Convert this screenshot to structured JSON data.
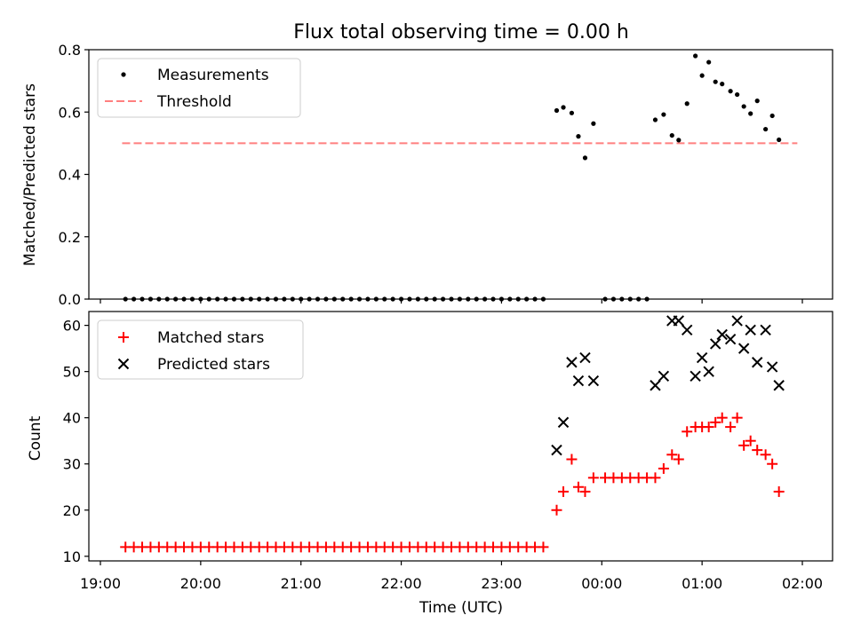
{
  "chart_data": [
    {
      "type": "scatter",
      "title": "Flux total observing time = 0.00 h",
      "ylabel": "Matched/Predicted stars",
      "xlim": [
        "19:00",
        "02:00"
      ],
      "ylim": [
        0,
        0.8
      ],
      "yticks": [
        "0.0",
        "0.2",
        "0.4",
        "0.6",
        "0.8"
      ],
      "legend": {
        "position": "upper-left",
        "entries": [
          "Measurements",
          "Threshold"
        ]
      },
      "threshold": {
        "name": "Threshold",
        "value": 0.5,
        "x_start": "19:13",
        "x_end": "01:57",
        "color": "#ff7f7f",
        "style": "dashed"
      },
      "series": [
        {
          "name": "Measurements",
          "color": "#000000",
          "marker": "dot",
          "points": [
            [
              "19:15",
              0
            ],
            [
              "19:20",
              0
            ],
            [
              "19:25",
              0
            ],
            [
              "19:30",
              0
            ],
            [
              "19:35",
              0
            ],
            [
              "19:40",
              0
            ],
            [
              "19:45",
              0
            ],
            [
              "19:50",
              0
            ],
            [
              "19:55",
              0
            ],
            [
              "20:00",
              0
            ],
            [
              "20:05",
              0
            ],
            [
              "20:10",
              0
            ],
            [
              "20:15",
              0
            ],
            [
              "20:20",
              0
            ],
            [
              "20:25",
              0
            ],
            [
              "20:30",
              0
            ],
            [
              "20:35",
              0
            ],
            [
              "20:40",
              0
            ],
            [
              "20:45",
              0
            ],
            [
              "20:50",
              0
            ],
            [
              "20:55",
              0
            ],
            [
              "21:00",
              0
            ],
            [
              "21:05",
              0
            ],
            [
              "21:10",
              0
            ],
            [
              "21:15",
              0
            ],
            [
              "21:20",
              0
            ],
            [
              "21:25",
              0
            ],
            [
              "21:30",
              0
            ],
            [
              "21:35",
              0
            ],
            [
              "21:40",
              0
            ],
            [
              "21:45",
              0
            ],
            [
              "21:50",
              0
            ],
            [
              "21:55",
              0
            ],
            [
              "22:00",
              0
            ],
            [
              "22:05",
              0
            ],
            [
              "22:10",
              0
            ],
            [
              "22:15",
              0
            ],
            [
              "22:20",
              0
            ],
            [
              "22:25",
              0
            ],
            [
              "22:30",
              0
            ],
            [
              "22:35",
              0
            ],
            [
              "22:40",
              0
            ],
            [
              "22:45",
              0
            ],
            [
              "22:50",
              0
            ],
            [
              "22:55",
              0
            ],
            [
              "23:00",
              0
            ],
            [
              "23:05",
              0
            ],
            [
              "23:10",
              0
            ],
            [
              "23:15",
              0
            ],
            [
              "23:20",
              0
            ],
            [
              "23:25",
              0
            ],
            [
              "23:33",
              0.605
            ],
            [
              "23:37",
              0.615
            ],
            [
              "23:42",
              0.597
            ],
            [
              "23:46",
              0.522
            ],
            [
              "23:50",
              0.453
            ],
            [
              "23:55",
              0.563
            ],
            [
              "00:02",
              0
            ],
            [
              "00:07",
              0
            ],
            [
              "00:12",
              0
            ],
            [
              "00:17",
              0
            ],
            [
              "00:22",
              0
            ],
            [
              "00:27",
              0
            ],
            [
              "00:32",
              0.575
            ],
            [
              "00:37",
              0.592
            ],
            [
              "00:42",
              0.525
            ],
            [
              "00:46",
              0.51
            ],
            [
              "00:51",
              0.627
            ],
            [
              "00:56",
              0.78
            ],
            [
              "01:00",
              0.717
            ],
            [
              "01:04",
              0.76
            ],
            [
              "01:08",
              0.697
            ],
            [
              "01:12",
              0.69
            ],
            [
              "01:17",
              0.667
            ],
            [
              "01:21",
              0.656
            ],
            [
              "01:25",
              0.618
            ],
            [
              "01:29",
              0.595
            ],
            [
              "01:33",
              0.636
            ],
            [
              "01:38",
              0.545
            ],
            [
              "01:42",
              0.588
            ],
            [
              "01:46",
              0.511
            ]
          ]
        }
      ]
    },
    {
      "type": "scatter",
      "xlabel": "Time (UTC)",
      "ylabel": "Count",
      "xlim": [
        "19:00",
        "02:00"
      ],
      "ylim": [
        9,
        63
      ],
      "xticks": [
        "19:00",
        "20:00",
        "21:00",
        "22:00",
        "23:00",
        "00:00",
        "01:00",
        "02:00"
      ],
      "yticks": [
        "10",
        "20",
        "30",
        "40",
        "50",
        "60"
      ],
      "legend": {
        "position": "upper-left",
        "entries": [
          "Matched stars",
          "Predicted stars"
        ]
      },
      "series": [
        {
          "name": "Matched stars",
          "color": "#ff0000",
          "marker": "plus",
          "points": [
            [
              "19:15",
              12
            ],
            [
              "19:20",
              12
            ],
            [
              "19:25",
              12
            ],
            [
              "19:30",
              12
            ],
            [
              "19:35",
              12
            ],
            [
              "19:40",
              12
            ],
            [
              "19:45",
              12
            ],
            [
              "19:50",
              12
            ],
            [
              "19:55",
              12
            ],
            [
              "20:00",
              12
            ],
            [
              "20:05",
              12
            ],
            [
              "20:10",
              12
            ],
            [
              "20:15",
              12
            ],
            [
              "20:20",
              12
            ],
            [
              "20:25",
              12
            ],
            [
              "20:30",
              12
            ],
            [
              "20:35",
              12
            ],
            [
              "20:40",
              12
            ],
            [
              "20:45",
              12
            ],
            [
              "20:50",
              12
            ],
            [
              "20:55",
              12
            ],
            [
              "21:00",
              12
            ],
            [
              "21:05",
              12
            ],
            [
              "21:10",
              12
            ],
            [
              "21:15",
              12
            ],
            [
              "21:20",
              12
            ],
            [
              "21:25",
              12
            ],
            [
              "21:30",
              12
            ],
            [
              "21:35",
              12
            ],
            [
              "21:40",
              12
            ],
            [
              "21:45",
              12
            ],
            [
              "21:50",
              12
            ],
            [
              "21:55",
              12
            ],
            [
              "22:00",
              12
            ],
            [
              "22:05",
              12
            ],
            [
              "22:10",
              12
            ],
            [
              "22:15",
              12
            ],
            [
              "22:20",
              12
            ],
            [
              "22:25",
              12
            ],
            [
              "22:30",
              12
            ],
            [
              "22:35",
              12
            ],
            [
              "22:40",
              12
            ],
            [
              "22:45",
              12
            ],
            [
              "22:50",
              12
            ],
            [
              "22:55",
              12
            ],
            [
              "23:00",
              12
            ],
            [
              "23:05",
              12
            ],
            [
              "23:10",
              12
            ],
            [
              "23:15",
              12
            ],
            [
              "23:20",
              12
            ],
            [
              "23:25",
              12
            ],
            [
              "23:33",
              20
            ],
            [
              "23:37",
              24
            ],
            [
              "23:42",
              31
            ],
            [
              "23:46",
              25
            ],
            [
              "23:50",
              24
            ],
            [
              "23:55",
              27
            ],
            [
              "00:02",
              27
            ],
            [
              "00:07",
              27
            ],
            [
              "00:12",
              27
            ],
            [
              "00:17",
              27
            ],
            [
              "00:22",
              27
            ],
            [
              "00:27",
              27
            ],
            [
              "00:32",
              27
            ],
            [
              "00:37",
              29
            ],
            [
              "00:42",
              32
            ],
            [
              "00:46",
              31
            ],
            [
              "00:51",
              37
            ],
            [
              "00:56",
              38
            ],
            [
              "01:00",
              38
            ],
            [
              "01:04",
              38
            ],
            [
              "01:08",
              39
            ],
            [
              "01:12",
              40
            ],
            [
              "01:17",
              38
            ],
            [
              "01:21",
              40
            ],
            [
              "01:25",
              34
            ],
            [
              "01:29",
              35
            ],
            [
              "01:33",
              33
            ],
            [
              "01:38",
              32
            ],
            [
              "01:42",
              30
            ],
            [
              "01:46",
              24
            ]
          ]
        },
        {
          "name": "Predicted stars",
          "color": "#000000",
          "marker": "x",
          "points": [
            [
              "23:33",
              33
            ],
            [
              "23:37",
              39
            ],
            [
              "23:42",
              52
            ],
            [
              "23:46",
              48
            ],
            [
              "23:50",
              53
            ],
            [
              "23:55",
              48
            ],
            [
              "00:32",
              47
            ],
            [
              "00:37",
              49
            ],
            [
              "00:42",
              61
            ],
            [
              "00:46",
              61
            ],
            [
              "00:51",
              59
            ],
            [
              "00:56",
              49
            ],
            [
              "01:00",
              53
            ],
            [
              "01:04",
              50
            ],
            [
              "01:08",
              56
            ],
            [
              "01:12",
              58
            ],
            [
              "01:17",
              57
            ],
            [
              "01:21",
              61
            ],
            [
              "01:25",
              55
            ],
            [
              "01:29",
              59
            ],
            [
              "01:33",
              52
            ],
            [
              "01:38",
              59
            ],
            [
              "01:42",
              51
            ],
            [
              "01:46",
              47
            ]
          ]
        }
      ]
    }
  ]
}
